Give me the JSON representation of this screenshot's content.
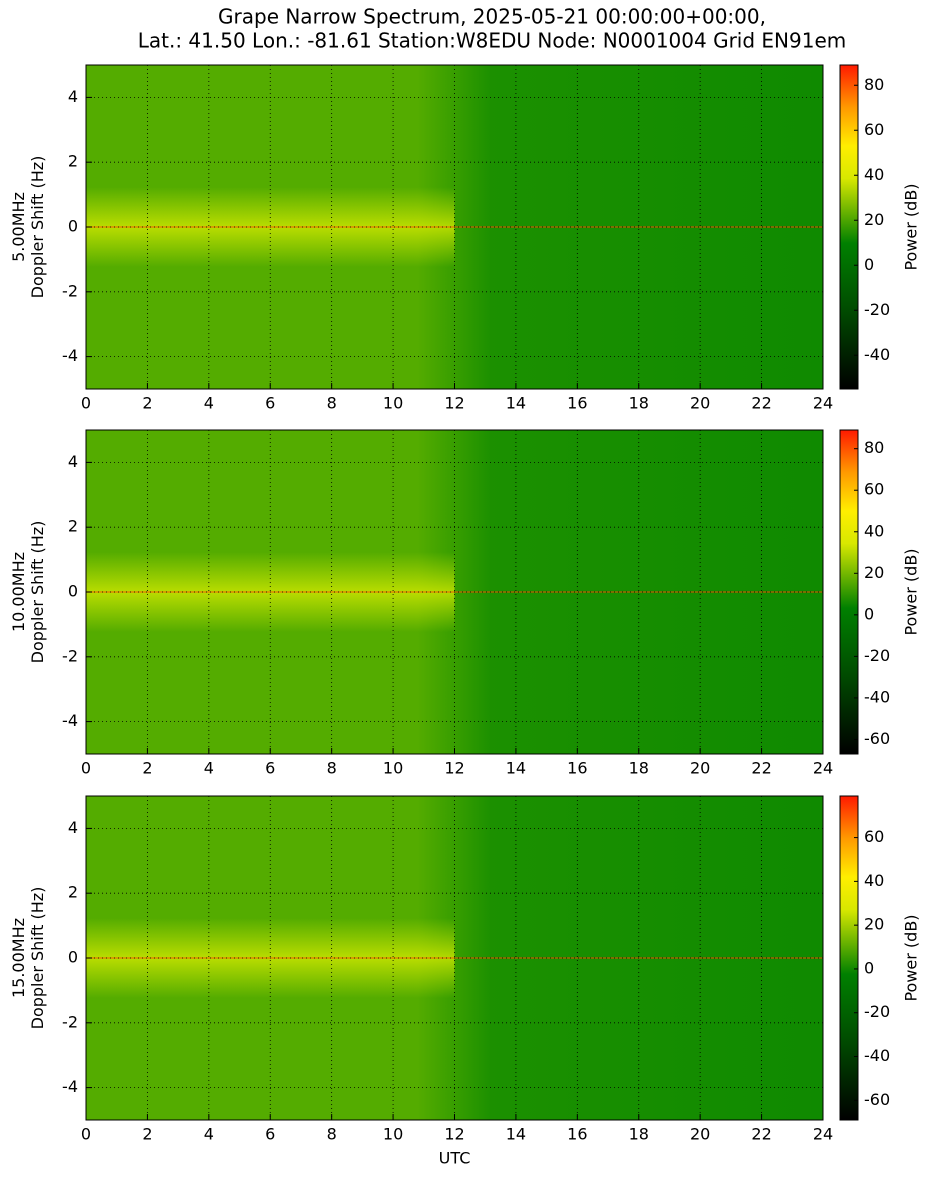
{
  "chart_data": [
    {
      "type": "heatmap",
      "title": [
        "Grape Narrow Spectrum, 2025-05-21 00:00:00+00:00,",
        "Lat.: 41.50 Lon.: -81.61 Station:W8EDU Node: N0001004 Grid EN91em"
      ],
      "ylabel": [
        "5.00MHz",
        "Doppler Shift (Hz)"
      ],
      "xlim": [
        0,
        24
      ],
      "xticks": [
        0,
        2,
        4,
        6,
        8,
        10,
        12,
        14,
        16,
        18,
        20,
        22,
        24
      ],
      "ylim": [
        -5,
        5
      ],
      "yticks": [
        -4,
        -2,
        0,
        2,
        4
      ],
      "grid": true,
      "colorbar_label": "Power (dB)",
      "clim": [
        -55,
        89
      ],
      "cticks": [
        -40,
        -20,
        0,
        20,
        40,
        60,
        80
      ]
    },
    {
      "type": "heatmap",
      "ylabel": [
        "10.00MHz",
        "Doppler Shift (Hz)"
      ],
      "xlim": [
        0,
        24
      ],
      "xticks": [
        0,
        2,
        4,
        6,
        8,
        10,
        12,
        14,
        16,
        18,
        20,
        22,
        24
      ],
      "ylim": [
        -5,
        5
      ],
      "yticks": [
        -4,
        -2,
        0,
        2,
        4
      ],
      "grid": true,
      "colorbar_label": "Power (dB)",
      "clim": [
        -67,
        89
      ],
      "cticks": [
        -60,
        -40,
        -20,
        0,
        20,
        40,
        60,
        80
      ]
    },
    {
      "type": "heatmap",
      "ylabel": [
        "15.00MHz",
        "Doppler Shift (Hz)"
      ],
      "xlabel": "UTC",
      "xlim": [
        0,
        24
      ],
      "xticks": [
        0,
        2,
        4,
        6,
        8,
        10,
        12,
        14,
        16,
        18,
        20,
        22,
        24
      ],
      "ylim": [
        -5,
        5
      ],
      "yticks": [
        -4,
        -2,
        0,
        2,
        4
      ],
      "grid": true,
      "colorbar_label": "Power (dB)",
      "clim": [
        -69,
        79
      ],
      "cticks": [
        -60,
        -40,
        -20,
        0,
        20,
        40,
        60
      ]
    }
  ]
}
